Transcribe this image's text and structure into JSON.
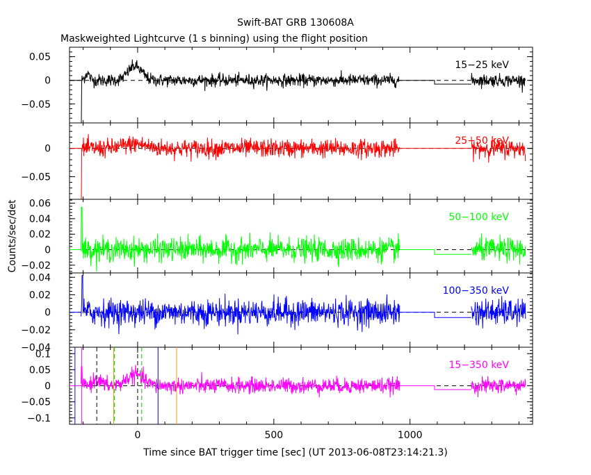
{
  "chart_data": {
    "type": "line",
    "title": "Swift-BAT GRB 130608A",
    "subtitle": "Maskweighted Lightcurve (1 s binning) using the flight position",
    "xlabel": "Time since BAT trigger time [sec] (UT 2013-06-08T23:14:21.3)",
    "ylabel": "Counts/sec/det",
    "xlim": [
      -250,
      1450
    ],
    "x_ticks": [
      0,
      500,
      1000
    ],
    "x_tick_labels": [
      "0",
      "500",
      "1000"
    ],
    "data_gaps": [
      [
        960,
        1090
      ],
      [
        1090,
        1225
      ]
    ],
    "panels": [
      {
        "band": "15−25 keV",
        "color": "#000000",
        "ylim": [
          -0.09,
          0.07
        ],
        "y_ticks": [
          0.05,
          0,
          -0.05
        ],
        "y_tick_labels": [
          "0.05",
          "0",
          "−0.05"
        ],
        "noise": 0.0065,
        "burst": [
          {
            "t": -10,
            "w": 25,
            "h": 0.03
          },
          {
            "t": -185,
            "w": 8,
            "h": 0.015
          }
        ],
        "spike": {
          "t": -208,
          "v": -0.09
        },
        "gap_level": -0.008
      },
      {
        "band": "25−50 keV",
        "color": "#ff0000",
        "ylim": [
          -0.09,
          0.045
        ],
        "y_ticks": [
          0,
          -0.05
        ],
        "y_tick_labels": [
          "0",
          "−0.05"
        ],
        "noise": 0.008,
        "burst": [
          {
            "t": -10,
            "w": 40,
            "h": 0.008
          }
        ],
        "spike": {
          "t": -208,
          "v": -0.09
        },
        "gap_level": 0
      },
      {
        "band": "50−100 keV",
        "color": "#00ff00",
        "ylim": [
          -0.03,
          0.065
        ],
        "y_ticks": [
          0.06,
          0.04,
          0.02,
          0,
          -0.02
        ],
        "y_tick_labels": [
          "0.06",
          "0.04",
          "0.02",
          "0",
          "−0.02"
        ],
        "noise": 0.0075,
        "burst": [],
        "spike": {
          "t": -205,
          "v": 0.055
        },
        "gap_level": -0.006
      },
      {
        "band": "100−350 keV",
        "color": "#0000ff",
        "ylim": [
          -0.04,
          0.045
        ],
        "y_ticks": [
          0.04,
          0.02,
          0,
          -0.02,
          -0.04
        ],
        "y_tick_labels": [
          "0.04",
          "0.02",
          "0",
          "−0.02",
          "−0.04"
        ],
        "noise": 0.0075,
        "burst": [],
        "spike": {
          "t": -203,
          "v": 0.042
        },
        "gap_level": -0.006
      },
      {
        "band": "15−350 keV",
        "color": "#ff00ff",
        "ylim": [
          -0.12,
          0.12
        ],
        "y_ticks": [
          0.1,
          0.05,
          0,
          -0.05,
          -0.1
        ],
        "y_tick_labels": [
          "0.1",
          "0.05",
          "0",
          "−0.05",
          "−0.1"
        ],
        "noise": 0.012,
        "burst": [
          {
            "t": -10,
            "w": 30,
            "h": 0.035
          },
          {
            "t": -150,
            "w": 15,
            "h": 0.02
          }
        ],
        "spike": {
          "t": -205,
          "v": 0.06
        },
        "gap_level": -0.012,
        "vlines": [
          {
            "t": -230,
            "color": "#0000ff",
            "style": "solid"
          },
          {
            "t": -205,
            "color": "#ff00ff",
            "style": "solid"
          },
          {
            "t": -150,
            "color": "#000000",
            "style": "dashed"
          },
          {
            "t": -88,
            "color": "#ff9900",
            "style": "solid"
          },
          {
            "t": -85,
            "color": "#00cc00",
            "style": "dashed"
          },
          {
            "t": 0,
            "color": "#000000",
            "style": "dashed"
          },
          {
            "t": 15,
            "color": "#00cc00",
            "style": "dashed"
          },
          {
            "t": 75,
            "color": "#0000ff",
            "style": "solid"
          },
          {
            "t": 143,
            "color": "#ff9900",
            "style": "solid"
          }
        ]
      }
    ]
  }
}
